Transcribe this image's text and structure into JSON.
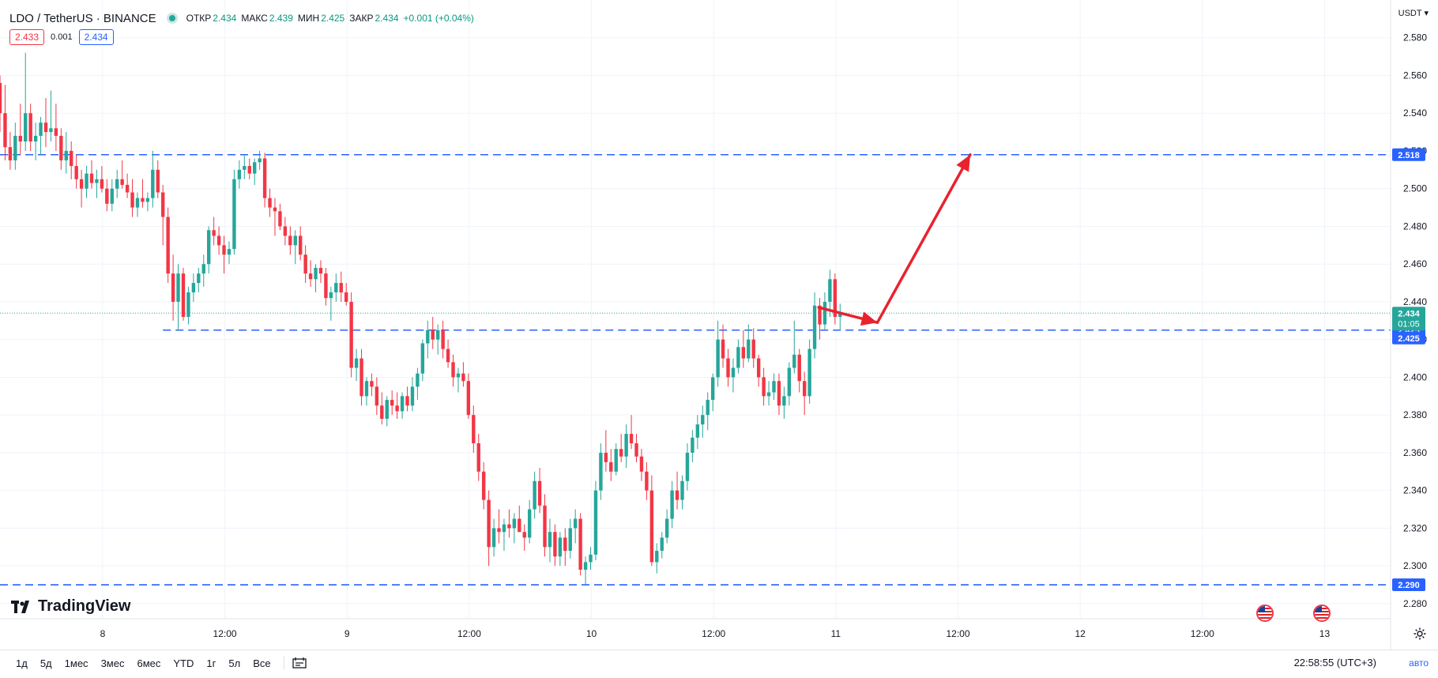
{
  "header": {
    "symbol": "LDO / TetherUS · BINANCE",
    "open_label": "ОТКР",
    "open": "2.434",
    "high_label": "МАКС",
    "high": "2.439",
    "low_label": "МИН",
    "low": "2.425",
    "close_label": "ЗАКР",
    "close": "2.434",
    "change": "+0.001 (+0.04%)"
  },
  "trade": {
    "sell": "2.433",
    "spread": "0.001",
    "buy": "2.434"
  },
  "currency": "USDT",
  "logo": "TradingView",
  "ranges": [
    "1д",
    "5д",
    "1мес",
    "3мес",
    "6мес",
    "YTD",
    "1г",
    "5л",
    "Все"
  ],
  "clock": "22:58:55 (UTC+3)",
  "auto_label": "авто",
  "countdown": "01:05",
  "colors": {
    "up": "#26a69a",
    "down": "#f23645",
    "level": "#2962ff",
    "arrow": "#e8232e"
  },
  "chart_data": {
    "type": "candlestick",
    "title": "LDO / TetherUS · BINANCE",
    "y_ticks": [
      "2.280",
      "2.300",
      "2.320",
      "2.340",
      "2.360",
      "2.380",
      "2.400",
      "2.420",
      "2.440",
      "2.460",
      "2.480",
      "2.500",
      "2.520",
      "2.540",
      "2.560",
      "2.580"
    ],
    "ylim": [
      2.272,
      2.6
    ],
    "x_ticks": [
      "8",
      "12:00",
      "9",
      "12:00",
      "10",
      "12:00",
      "11",
      "12:00",
      "12",
      "12:00",
      "13"
    ],
    "xlim_days": [
      7.58,
      13.27
    ],
    "grid": true,
    "last_price": "2.434",
    "levels": [
      {
        "label": "2.518",
        "value": 2.518
      },
      {
        "label": "2.425",
        "value": 2.425
      },
      {
        "label": "2.290",
        "value": 2.29
      }
    ],
    "arrows": [
      {
        "from": [
          10.93,
          2.437
        ],
        "to": [
          11.17,
          2.429
        ]
      },
      {
        "from": [
          11.17,
          2.429
        ],
        "to": [
          11.55,
          2.518
        ]
      }
    ],
    "candles": [
      [
        2.556,
        2.56,
        2.53,
        2.54
      ],
      [
        2.54,
        2.555,
        2.515,
        2.522
      ],
      [
        2.522,
        2.53,
        2.51,
        2.515
      ],
      [
        2.515,
        2.535,
        2.51,
        2.528
      ],
      [
        2.528,
        2.545,
        2.518,
        2.525
      ],
      [
        2.525,
        2.572,
        2.52,
        2.54
      ],
      [
        2.54,
        2.545,
        2.52,
        2.525
      ],
      [
        2.525,
        2.535,
        2.515,
        2.528
      ],
      [
        2.528,
        2.538,
        2.518,
        2.535
      ],
      [
        2.535,
        2.548,
        2.522,
        2.53
      ],
      [
        2.53,
        2.552,
        2.525,
        2.532
      ],
      [
        2.532,
        2.545,
        2.52,
        2.528
      ],
      [
        2.528,
        2.532,
        2.51,
        2.515
      ],
      [
        2.515,
        2.53,
        2.508,
        2.52
      ],
      [
        2.52,
        2.525,
        2.505,
        2.512
      ],
      [
        2.512,
        2.518,
        2.5,
        2.505
      ],
      [
        2.505,
        2.51,
        2.49,
        2.5
      ],
      [
        2.5,
        2.512,
        2.495,
        2.508
      ],
      [
        2.508,
        2.515,
        2.5,
        2.503
      ],
      [
        2.503,
        2.51,
        2.495,
        2.505
      ],
      [
        2.505,
        2.512,
        2.498,
        2.5
      ],
      [
        2.5,
        2.505,
        2.488,
        2.492
      ],
      [
        2.492,
        2.505,
        2.488,
        2.5
      ],
      [
        2.5,
        2.51,
        2.495,
        2.505
      ],
      [
        2.505,
        2.515,
        2.5,
        2.502
      ],
      [
        2.502,
        2.508,
        2.495,
        2.498
      ],
      [
        2.498,
        2.505,
        2.485,
        2.49
      ],
      [
        2.49,
        2.498,
        2.485,
        2.495
      ],
      [
        2.495,
        2.505,
        2.49,
        2.493
      ],
      [
        2.493,
        2.498,
        2.488,
        2.495
      ],
      [
        2.495,
        2.52,
        2.49,
        2.51
      ],
      [
        2.51,
        2.515,
        2.495,
        2.498
      ],
      [
        2.498,
        2.502,
        2.47,
        2.485
      ],
      [
        2.485,
        2.49,
        2.45,
        2.455
      ],
      [
        2.455,
        2.465,
        2.43,
        2.44
      ],
      [
        2.44,
        2.46,
        2.425,
        2.455
      ],
      [
        2.455,
        2.458,
        2.43,
        2.432
      ],
      [
        2.432,
        2.448,
        2.428,
        2.445
      ],
      [
        2.445,
        2.455,
        2.44,
        2.45
      ],
      [
        2.45,
        2.458,
        2.445,
        2.455
      ],
      [
        2.455,
        2.465,
        2.448,
        2.46
      ],
      [
        2.46,
        2.48,
        2.455,
        2.478
      ],
      [
        2.478,
        2.485,
        2.47,
        2.475
      ],
      [
        2.475,
        2.48,
        2.465,
        2.47
      ],
      [
        2.47,
        2.475,
        2.455,
        2.465
      ],
      [
        2.465,
        2.472,
        2.46,
        2.468
      ],
      [
        2.468,
        2.51,
        2.465,
        2.505
      ],
      [
        2.505,
        2.515,
        2.5,
        2.51
      ],
      [
        2.51,
        2.518,
        2.505,
        2.512
      ],
      [
        2.512,
        2.516,
        2.505,
        2.508
      ],
      [
        2.508,
        2.516,
        2.502,
        2.514
      ],
      [
        2.514,
        2.52,
        2.51,
        2.516
      ],
      [
        2.516,
        2.519,
        2.49,
        2.495
      ],
      [
        2.495,
        2.5,
        2.485,
        2.49
      ],
      [
        2.49,
        2.495,
        2.475,
        2.488
      ],
      [
        2.488,
        2.492,
        2.478,
        2.48
      ],
      [
        2.48,
        2.485,
        2.47,
        2.475
      ],
      [
        2.475,
        2.48,
        2.465,
        2.47
      ],
      [
        2.47,
        2.478,
        2.46,
        2.475
      ],
      [
        2.475,
        2.48,
        2.462,
        2.465
      ],
      [
        2.465,
        2.47,
        2.45,
        2.455
      ],
      [
        2.455,
        2.462,
        2.448,
        2.452
      ],
      [
        2.452,
        2.46,
        2.445,
        2.458
      ],
      [
        2.458,
        2.462,
        2.45,
        2.455
      ],
      [
        2.455,
        2.458,
        2.438,
        2.442
      ],
      [
        2.442,
        2.448,
        2.43,
        2.445
      ],
      [
        2.445,
        2.455,
        2.44,
        2.45
      ],
      [
        2.45,
        2.456,
        2.44,
        2.445
      ],
      [
        2.445,
        2.45,
        2.438,
        2.44
      ],
      [
        2.44,
        2.445,
        2.4,
        2.405
      ],
      [
        2.405,
        2.415,
        2.398,
        2.41
      ],
      [
        2.41,
        2.415,
        2.385,
        2.39
      ],
      [
        2.39,
        2.4,
        2.385,
        2.398
      ],
      [
        2.398,
        2.402,
        2.39,
        2.395
      ],
      [
        2.395,
        2.4,
        2.38,
        2.385
      ],
      [
        2.385,
        2.392,
        2.375,
        2.378
      ],
      [
        2.378,
        2.39,
        2.374,
        2.388
      ],
      [
        2.388,
        2.393,
        2.38,
        2.385
      ],
      [
        2.385,
        2.392,
        2.378,
        2.382
      ],
      [
        2.382,
        2.392,
        2.378,
        2.39
      ],
      [
        2.39,
        2.395,
        2.382,
        2.385
      ],
      [
        2.385,
        2.4,
        2.382,
        2.395
      ],
      [
        2.395,
        2.405,
        2.388,
        2.402
      ],
      [
        2.402,
        2.42,
        2.398,
        2.418
      ],
      [
        2.418,
        2.43,
        2.41,
        2.425
      ],
      [
        2.425,
        2.432,
        2.415,
        2.42
      ],
      [
        2.42,
        2.428,
        2.412,
        2.425
      ],
      [
        2.425,
        2.43,
        2.41,
        2.415
      ],
      [
        2.415,
        2.42,
        2.405,
        2.408
      ],
      [
        2.408,
        2.412,
        2.395,
        2.4
      ],
      [
        2.4,
        2.405,
        2.392,
        2.402
      ],
      [
        2.402,
        2.408,
        2.395,
        2.398
      ],
      [
        2.398,
        2.402,
        2.378,
        2.38
      ],
      [
        2.38,
        2.385,
        2.36,
        2.365
      ],
      [
        2.365,
        2.37,
        2.345,
        2.35
      ],
      [
        2.35,
        2.355,
        2.33,
        2.335
      ],
      [
        2.335,
        2.34,
        2.3,
        2.31
      ],
      [
        2.31,
        2.325,
        2.305,
        2.32
      ],
      [
        2.32,
        2.33,
        2.312,
        2.318
      ],
      [
        2.318,
        2.325,
        2.308,
        2.322
      ],
      [
        2.322,
        2.33,
        2.315,
        2.32
      ],
      [
        2.32,
        2.328,
        2.312,
        2.325
      ],
      [
        2.325,
        2.332,
        2.318,
        2.318
      ],
      [
        2.318,
        2.322,
        2.308,
        2.315
      ],
      [
        2.315,
        2.335,
        2.312,
        2.33
      ],
      [
        2.33,
        2.35,
        2.325,
        2.345
      ],
      [
        2.345,
        2.352,
        2.328,
        2.332
      ],
      [
        2.332,
        2.338,
        2.305,
        2.31
      ],
      [
        2.31,
        2.325,
        2.302,
        2.318
      ],
      [
        2.318,
        2.322,
        2.3,
        2.305
      ],
      [
        2.305,
        2.318,
        2.3,
        2.315
      ],
      [
        2.315,
        2.32,
        2.3,
        2.308
      ],
      [
        2.308,
        2.325,
        2.304,
        2.32
      ],
      [
        2.32,
        2.33,
        2.312,
        2.325
      ],
      [
        2.325,
        2.328,
        2.295,
        2.298
      ],
      [
        2.298,
        2.305,
        2.29,
        2.302
      ],
      [
        2.302,
        2.31,
        2.298,
        2.306
      ],
      [
        2.306,
        2.345,
        2.303,
        2.34
      ],
      [
        2.34,
        2.365,
        2.335,
        2.36
      ],
      [
        2.36,
        2.372,
        2.35,
        2.355
      ],
      [
        2.355,
        2.362,
        2.345,
        2.35
      ],
      [
        2.35,
        2.365,
        2.348,
        2.362
      ],
      [
        2.362,
        2.37,
        2.355,
        2.358
      ],
      [
        2.358,
        2.375,
        2.352,
        2.37
      ],
      [
        2.37,
        2.38,
        2.362,
        2.365
      ],
      [
        2.365,
        2.37,
        2.355,
        2.358
      ],
      [
        2.358,
        2.362,
        2.345,
        2.35
      ],
      [
        2.35,
        2.355,
        2.335,
        2.34
      ],
      [
        2.34,
        2.348,
        2.3,
        2.302
      ],
      [
        2.302,
        2.312,
        2.296,
        2.308
      ],
      [
        2.308,
        2.318,
        2.304,
        2.315
      ],
      [
        2.315,
        2.33,
        2.312,
        2.325
      ],
      [
        2.325,
        2.345,
        2.32,
        2.34
      ],
      [
        2.34,
        2.35,
        2.33,
        2.335
      ],
      [
        2.335,
        2.348,
        2.33,
        2.345
      ],
      [
        2.345,
        2.365,
        2.34,
        2.36
      ],
      [
        2.36,
        2.372,
        2.355,
        2.368
      ],
      [
        2.368,
        2.38,
        2.362,
        2.375
      ],
      [
        2.375,
        2.385,
        2.368,
        2.38
      ],
      [
        2.38,
        2.392,
        2.372,
        2.388
      ],
      [
        2.388,
        2.402,
        2.382,
        2.4
      ],
      [
        2.4,
        2.43,
        2.395,
        2.42
      ],
      [
        2.42,
        2.428,
        2.405,
        2.41
      ],
      [
        2.41,
        2.415,
        2.395,
        2.4
      ],
      [
        2.4,
        2.41,
        2.392,
        2.405
      ],
      [
        2.405,
        2.42,
        2.402,
        2.416
      ],
      [
        2.416,
        2.425,
        2.405,
        2.41
      ],
      [
        2.41,
        2.428,
        2.408,
        2.42
      ],
      [
        2.42,
        2.426,
        2.405,
        2.41
      ],
      [
        2.41,
        2.412,
        2.395,
        2.4
      ],
      [
        2.4,
        2.405,
        2.385,
        2.39
      ],
      [
        2.39,
        2.398,
        2.385,
        2.392
      ],
      [
        2.392,
        2.402,
        2.388,
        2.398
      ],
      [
        2.398,
        2.402,
        2.38,
        2.385
      ],
      [
        2.385,
        2.395,
        2.378,
        2.39
      ],
      [
        2.39,
        2.408,
        2.385,
        2.405
      ],
      [
        2.405,
        2.43,
        2.402,
        2.412
      ],
      [
        2.412,
        2.415,
        2.392,
        2.398
      ],
      [
        2.398,
        2.403,
        2.38,
        2.39
      ],
      [
        2.39,
        2.42,
        2.386,
        2.415
      ],
      [
        2.415,
        2.445,
        2.41,
        2.438
      ],
      [
        2.438,
        2.442,
        2.42,
        2.428
      ],
      [
        2.428,
        2.445,
        2.425,
        2.44
      ],
      [
        2.44,
        2.457,
        2.432,
        2.452
      ],
      [
        2.452,
        2.455,
        2.428,
        2.432
      ],
      [
        2.432,
        2.439,
        2.425,
        2.434
      ]
    ]
  }
}
